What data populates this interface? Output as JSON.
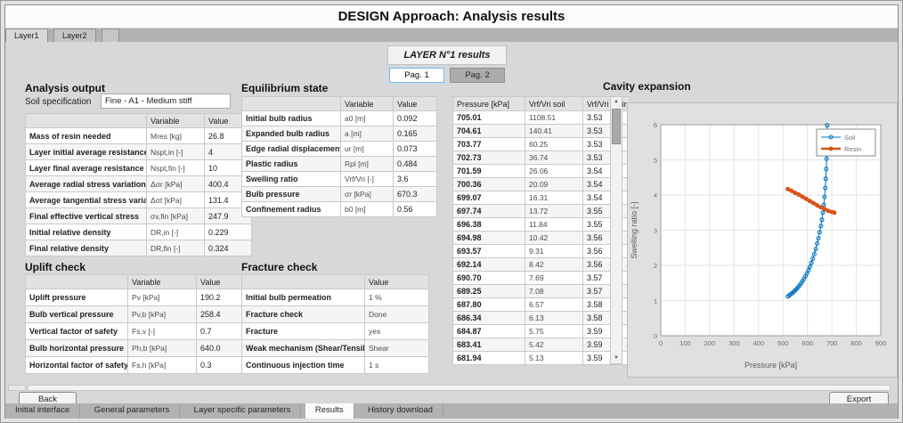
{
  "window": {
    "title": "DESIGN Approach: Analysis results"
  },
  "top_tabs": [
    {
      "label": "Layer1",
      "selected": true
    },
    {
      "label": "Layer2",
      "selected": false
    }
  ],
  "layer_results": {
    "title": "LAYER N°1 results",
    "pag1": "Pag. 1",
    "pag2": "Pag. 2"
  },
  "analysis_output": {
    "title": "Analysis output",
    "soil_spec_label": "Soil specification",
    "soil_spec_value": "Fine - A1 - Medium stiff",
    "headers": [
      "",
      "Variable",
      "Value"
    ],
    "rows": [
      [
        "Mass of resin needed",
        "Mres [kg]",
        "26.8"
      ],
      [
        "Layer initial average resistance",
        "Nspt,in [-]",
        "4"
      ],
      [
        "Layer final average resistance",
        "Nspt,fin [-]",
        "10"
      ],
      [
        "Average radial stress variation",
        "Δσr [kPa]",
        "400.4"
      ],
      [
        "Average tangential stress variation",
        "Δσt [kPa]",
        "131.4"
      ],
      [
        "Final effective vertical stress",
        "σv,fin [kPa]",
        "247.9"
      ],
      [
        "Initial relative density",
        "DR,in [-]",
        "0.229"
      ],
      [
        "Final relative density",
        "DR,fin [-]",
        "0.324"
      ]
    ]
  },
  "equilibrium_state": {
    "title": "Equilibrium state",
    "headers": [
      "",
      "Variable",
      "Value"
    ],
    "rows": [
      [
        "Initial bulb radius",
        "a0 [m]",
        "0.092"
      ],
      [
        "Expanded bulb radius",
        "a [m]",
        "0.165"
      ],
      [
        "Edge radial displacement",
        "ur [m]",
        "0.073"
      ],
      [
        "Plastic radius",
        "Rpl [m]",
        "0.484"
      ],
      [
        "Swelling ratio",
        "Vrf/Vri [-]",
        "3.6"
      ],
      [
        "Bulb pressure",
        "σr [kPa]",
        "670.3"
      ],
      [
        "Confinement radius",
        "b0 [m]",
        "0.56"
      ]
    ]
  },
  "uplift_check": {
    "title": "Uplift check",
    "headers": [
      "",
      "Variable",
      "Value"
    ],
    "rows": [
      [
        "Uplift pressure",
        "Pv [kPa]",
        "190.2"
      ],
      [
        "Bulb vertical pressure",
        "Pv,b [kPa]",
        "258.4"
      ],
      [
        "Vertical factor of safety",
        "Fs,v [-]",
        "0.7"
      ],
      [
        "Bulb horizontal pressure",
        "Ph,b [kPa]",
        "640.0"
      ],
      [
        "Horizontal factor of safety",
        "Fs,h [kPa]",
        "0.3"
      ]
    ]
  },
  "fracture_check": {
    "title": "Fracture check",
    "headers": [
      "",
      "Value"
    ],
    "rows": [
      [
        "Initial bulb permeation",
        "1 %"
      ],
      [
        "Fracture check",
        "Done"
      ],
      [
        "Fracture",
        "yes"
      ],
      [
        "Weak mechanism (Shear/Tensile)",
        "Shear"
      ],
      [
        "Continuous injection time",
        "1 s"
      ]
    ]
  },
  "pressure_table": {
    "headers": [
      "Pressure [kPa]",
      "Vrf/Vri soil",
      "Vrf/Vri resin"
    ],
    "rows": [
      [
        "705.01",
        "1108.51",
        "3.53"
      ],
      [
        "704.61",
        "140.41",
        "3.53"
      ],
      [
        "703.77",
        "60.25",
        "3.53"
      ],
      [
        "702.73",
        "36.74",
        "3.53"
      ],
      [
        "701.59",
        "26.06",
        "3.54"
      ],
      [
        "700.36",
        "20.09",
        "3.54"
      ],
      [
        "699.07",
        "16.31",
        "3.54"
      ],
      [
        "697.74",
        "13.72",
        "3.55"
      ],
      [
        "696.38",
        "11.84",
        "3.55"
      ],
      [
        "694.98",
        "10.42",
        "3.56"
      ],
      [
        "693.57",
        "9.31",
        "3.56"
      ],
      [
        "692.14",
        "8.42",
        "3.56"
      ],
      [
        "690.70",
        "7.69",
        "3.57"
      ],
      [
        "689.25",
        "7.08",
        "3.57"
      ],
      [
        "687.80",
        "6.57",
        "3.58"
      ],
      [
        "686.34",
        "6.13",
        "3.58"
      ],
      [
        "684.87",
        "5.75",
        "3.59"
      ],
      [
        "683.41",
        "5.42",
        "3.59"
      ],
      [
        "681.94",
        "5.13",
        "3.59"
      ]
    ]
  },
  "chart_data": {
    "type": "line",
    "title": "Cavity expansion",
    "xlabel": "Pressure [kPa]",
    "ylabel": "Swelling ratio [-]",
    "xlim": [
      0,
      900
    ],
    "ylim": [
      0,
      6
    ],
    "xticks": [
      0,
      100,
      200,
      300,
      400,
      500,
      600,
      700,
      800,
      900
    ],
    "yticks": [
      0,
      1,
      2,
      3,
      4,
      5,
      6
    ],
    "grid": true,
    "legend_position": "top-right",
    "series": [
      {
        "name": "Soil",
        "color": "#0072BD",
        "marker": "circle-open",
        "line_width": 1,
        "points": [
          [
            520,
            1.12
          ],
          [
            526,
            1.15
          ],
          [
            532,
            1.18
          ],
          [
            538,
            1.21
          ],
          [
            544,
            1.25
          ],
          [
            550,
            1.29
          ],
          [
            556,
            1.33
          ],
          [
            562,
            1.38
          ],
          [
            568,
            1.43
          ],
          [
            574,
            1.49
          ],
          [
            580,
            1.55
          ],
          [
            586,
            1.62
          ],
          [
            592,
            1.69
          ],
          [
            598,
            1.77
          ],
          [
            604,
            1.86
          ],
          [
            610,
            1.96
          ],
          [
            616,
            2.07
          ],
          [
            622,
            2.19
          ],
          [
            628,
            2.32
          ],
          [
            634,
            2.46
          ],
          [
            640,
            2.62
          ],
          [
            645,
            2.77
          ],
          [
            650,
            2.94
          ],
          [
            655,
            3.12
          ],
          [
            659,
            3.3
          ],
          [
            663,
            3.5
          ],
          [
            667,
            3.72
          ],
          [
            670,
            3.95
          ],
          [
            673,
            4.2
          ],
          [
            675,
            4.46
          ],
          [
            677,
            4.74
          ],
          [
            678.5,
            5.03
          ],
          [
            679.5,
            5.33
          ],
          [
            680.5,
            5.65
          ],
          [
            681,
            5.98
          ]
        ]
      },
      {
        "name": "Resin",
        "color": "#D95319",
        "marker": "circle-filled",
        "line_width": 3.5,
        "points": [
          [
            520,
            4.17
          ],
          [
            535,
            4.12
          ],
          [
            550,
            4.06
          ],
          [
            565,
            4.01
          ],
          [
            580,
            3.95
          ],
          [
            595,
            3.89
          ],
          [
            610,
            3.83
          ],
          [
            625,
            3.77
          ],
          [
            640,
            3.71
          ],
          [
            655,
            3.65
          ],
          [
            670,
            3.6
          ],
          [
            685,
            3.55
          ],
          [
            700,
            3.52
          ],
          [
            710,
            3.5
          ]
        ]
      }
    ]
  },
  "footer": {
    "back": "Back",
    "export": "Export"
  },
  "bottom_tabs": [
    {
      "label": "Initial interface",
      "selected": false
    },
    {
      "label": "General parameters",
      "selected": false
    },
    {
      "label": "Layer specific parameters",
      "selected": false
    },
    {
      "label": "Results",
      "selected": true
    },
    {
      "label": "History download",
      "selected": false
    }
  ]
}
